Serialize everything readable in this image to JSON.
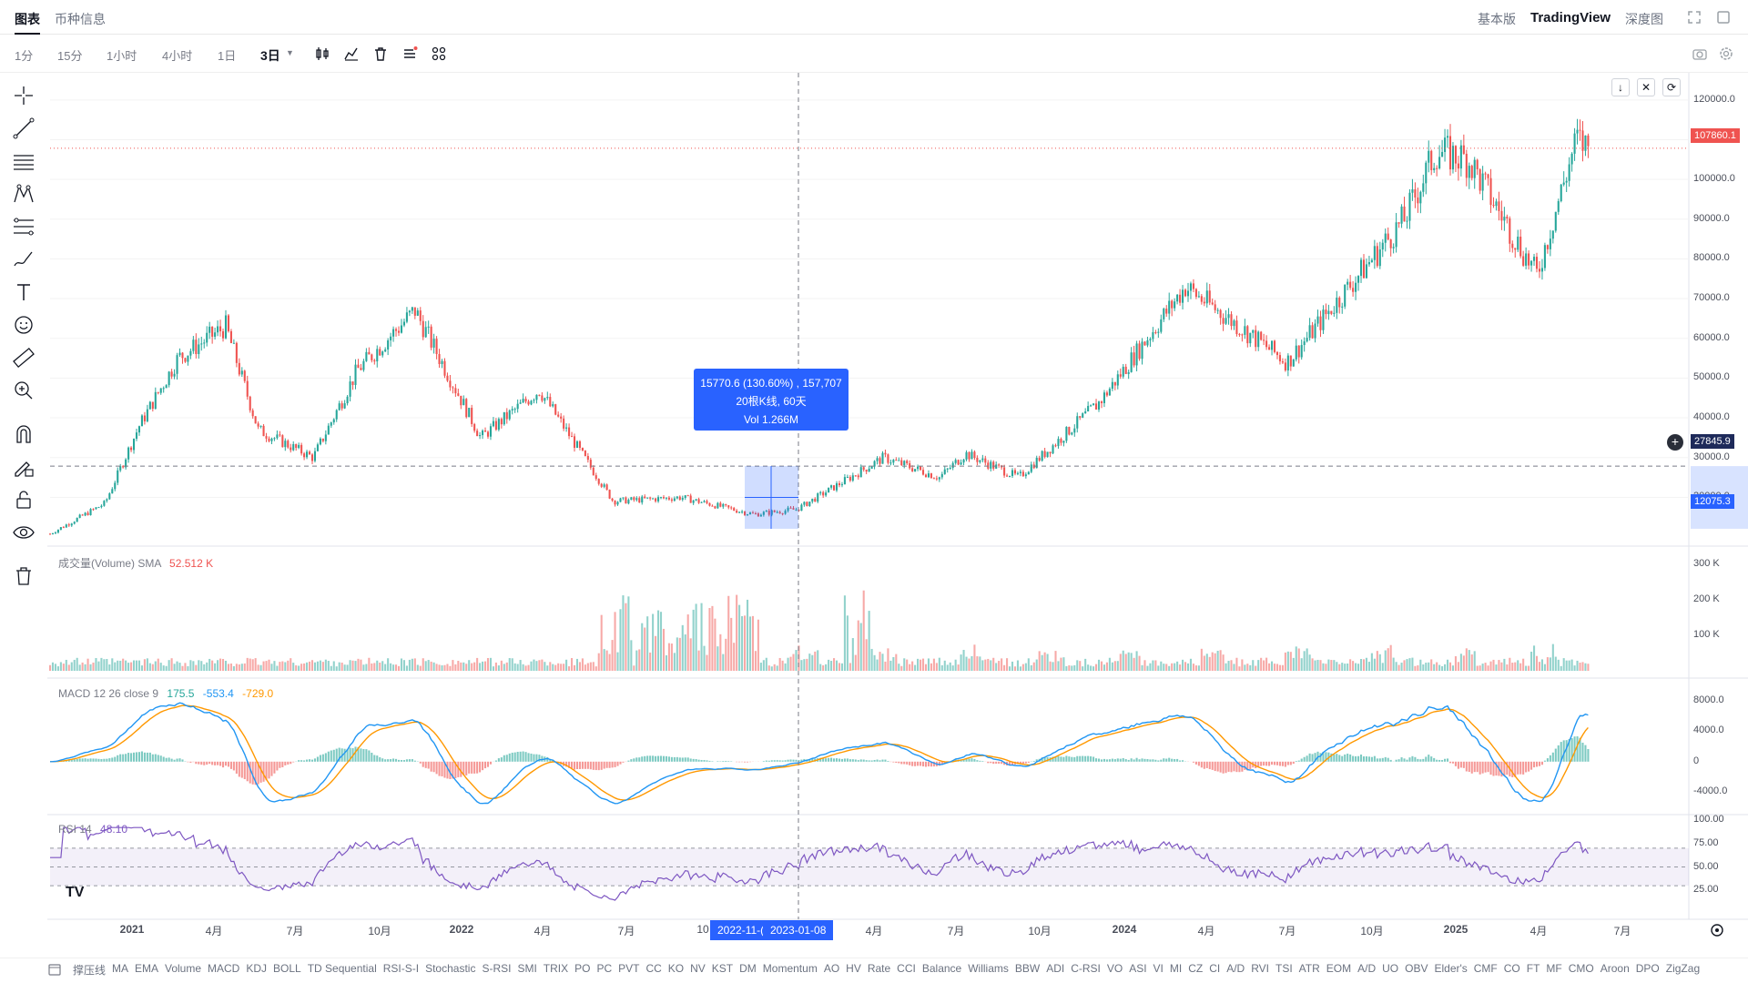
{
  "tabs": {
    "chart": "图表",
    "info": "币种信息"
  },
  "views": {
    "basic": "基本版",
    "tradingview": "TradingView",
    "depth": "深度图"
  },
  "intervals": [
    "1分",
    "15分",
    "1小时",
    "4小时",
    "1日",
    "3日"
  ],
  "active_interval": "3日",
  "icons": {
    "toolbar": [
      "candle-type-icon",
      "indicators-icon",
      "delete-icon",
      "settings-list-icon",
      "layout-grid-icon"
    ],
    "left_tools": [
      "crosshair-icon",
      "trendline-icon",
      "parallel-lines-icon",
      "pattern-icon",
      "fib-icon",
      "brush-icon",
      "text-icon",
      "emoji-icon",
      "ruler-icon",
      "zoom-icon",
      "magnet-icon",
      "lock-drawing-icon",
      "lock-icon",
      "eye-icon",
      "trash-icon"
    ]
  },
  "price_axis": {
    "ticks": [
      "120000.0",
      "110000.0",
      "100000.0",
      "90000.0",
      "80000.0",
      "70000.0",
      "60000.0",
      "50000.0",
      "40000.0",
      "30000.0",
      "20000.0"
    ],
    "last_price": "107860.1",
    "cursor_price": "27845.9",
    "measure_price": "12075.3"
  },
  "measure": {
    "line1": "15770.6 (130.60%) , 157,707",
    "line2": "20根K线, 60天",
    "line3": "Vol 1.266M"
  },
  "volume_pane": {
    "label": "成交量(Volume) SMA",
    "value": "52.512 K",
    "ticks": [
      "300 K",
      "200 K",
      "100 K"
    ]
  },
  "macd_pane": {
    "label": "MACD 12 26 close 9",
    "v1": "175.5",
    "v2": "-553.4",
    "v3": "-729.0",
    "ticks": [
      "8000.0",
      "4000.0",
      "0",
      "-4000.0"
    ]
  },
  "rsi_pane": {
    "label": "RSI 14",
    "value": "48.10",
    "ticks": [
      "100.00",
      "75.00",
      "50.00",
      "25.00"
    ]
  },
  "x_axis": {
    "labels": [
      "2021",
      "4月",
      "7月",
      "10月",
      "2022",
      "4月",
      "7月",
      "10",
      "4月",
      "7月",
      "10月",
      "2024",
      "4月",
      "7月",
      "10月",
      "2025",
      "4月",
      "7月"
    ],
    "highlight_start": "2022-11-(",
    "highlight_end": "2023-01-08"
  },
  "indicators": [
    "撑压线",
    "MA",
    "EMA",
    "Volume",
    "MACD",
    "KDJ",
    "BOLL",
    "TD Sequential",
    "RSI-S-I",
    "Stochastic",
    "S-RSI",
    "SMI",
    "TRIX",
    "PO",
    "PC",
    "PVT",
    "CC",
    "KO",
    "NV",
    "KST",
    "DM",
    "Momentum",
    "AO",
    "HV",
    "Rate",
    "CCI",
    "Balance",
    "Williams",
    "BBW",
    "ADI",
    "C-RSI",
    "VO",
    "ASI",
    "VI",
    "MI",
    "CZ",
    "CI",
    "A/D",
    "RVI",
    "TSI",
    "ATR",
    "EOM",
    "A/D",
    "UO",
    "OBV",
    "Elder's",
    "CMF",
    "CO",
    "FT",
    "MF",
    "CMO",
    "Aroon",
    "DPO",
    "ZigZag"
  ],
  "colors": {
    "up": "#26a69a",
    "down": "#ef5350",
    "accent": "#2962ff",
    "macd": "#2196f3",
    "signal": "#ff9800",
    "rsi": "#7e57c2"
  },
  "chart_data": {
    "type": "candlestick",
    "title": "",
    "interval": "3日",
    "x_range": [
      "2020-10",
      "2025-06"
    ],
    "ylim": [
      10000,
      125000
    ],
    "price_anchors": [
      [
        "2020-10-01",
        10800
      ],
      [
        "2020-12-01",
        18500
      ],
      [
        "2021-01-08",
        38000
      ],
      [
        "2021-02-20",
        55000
      ],
      [
        "2021-04-14",
        63000
      ],
      [
        "2021-05-20",
        37000
      ],
      [
        "2021-07-20",
        30000
      ],
      [
        "2021-09-07",
        52000
      ],
      [
        "2021-11-10",
        67000
      ],
      [
        "2022-01-22",
        35000
      ],
      [
        "2022-03-28",
        47000
      ],
      [
        "2022-06-18",
        19000
      ],
      [
        "2022-09-01",
        20000
      ],
      [
        "2022-11-21",
        15700
      ],
      [
        "2023-01-08",
        17000
      ],
      [
        "2023-04-14",
        30000
      ],
      [
        "2023-06-15",
        25000
      ],
      [
        "2023-07-14",
        31000
      ],
      [
        "2023-09-11",
        25000
      ],
      [
        "2023-12-10",
        44000
      ],
      [
        "2024-03-14",
        73000
      ],
      [
        "2024-07-05",
        54000
      ],
      [
        "2024-11-12",
        90000
      ],
      [
        "2024-12-17",
        107000
      ],
      [
        "2025-01-22",
        105000
      ],
      [
        "2025-04-08",
        76000
      ],
      [
        "2025-05-22",
        110000
      ],
      [
        "2025-06-05",
        107860
      ]
    ]
  }
}
